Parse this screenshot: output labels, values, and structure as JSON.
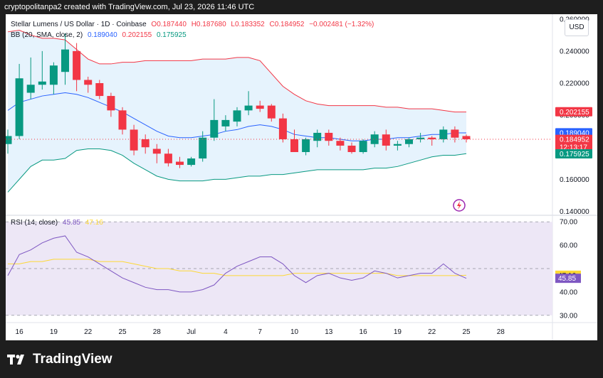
{
  "header": {
    "text": "cryptopolitanpa2 created with TradingView.com, Jul 23, 2026 11:46 UTC"
  },
  "legend": {
    "symbol": "Stellar Lumens / US Dollar · 1D · Coinbase",
    "open": "O0.187440",
    "high": "H0.187680",
    "low": "L0.183352",
    "close": "C0.184952",
    "change": "−0.002481 (−1.32%)",
    "bb_label": "BB (20, SMA, close, 2)",
    "bb_basis": "0.189040",
    "bb_upper": "0.202155",
    "bb_lower": "0.175925",
    "rsi_label": "RSI (14, close)",
    "rsi_value": "45.85",
    "rsi_ma": "47.16"
  },
  "currency": "USD",
  "footer": {
    "brand": "TradingView"
  },
  "colors": {
    "up": "#089981",
    "down": "#f23645",
    "bb_basis": "#2962ff",
    "bb_upper": "#f23645",
    "bb_lower": "#089981",
    "bb_fill": "#e3f2fd",
    "rsi_line": "#7e57c2",
    "rsi_ma": "#fdd835",
    "rsi_band": "#ede7f6"
  },
  "chart_data": {
    "type": "candlestick",
    "price_axis": {
      "ticks": [
        "0.260000",
        "0.240000",
        "0.220000",
        "0.200000",
        "0.180000",
        "0.160000",
        "0.140000"
      ],
      "min": 0.138,
      "max": 0.263
    },
    "x_labels": [
      {
        "i": 1,
        "text": "16"
      },
      {
        "i": 4,
        "text": "19"
      },
      {
        "i": 7,
        "text": "22"
      },
      {
        "i": 10,
        "text": "25"
      },
      {
        "i": 13,
        "text": "28"
      },
      {
        "i": 16,
        "text": "Jul"
      },
      {
        "i": 19,
        "text": "4"
      },
      {
        "i": 22,
        "text": "7"
      },
      {
        "i": 25,
        "text": "10"
      },
      {
        "i": 28,
        "text": "13"
      },
      {
        "i": 31,
        "text": "16"
      },
      {
        "i": 34,
        "text": "19"
      },
      {
        "i": 37,
        "text": "22"
      },
      {
        "i": 40,
        "text": "25"
      },
      {
        "i": 43,
        "text": "28"
      }
    ],
    "candles": [
      [
        0.182,
        0.191,
        0.176,
        0.187
      ],
      [
        0.187,
        0.232,
        0.185,
        0.223
      ],
      [
        0.214,
        0.236,
        0.21,
        0.219
      ],
      [
        0.219,
        0.24,
        0.216,
        0.221
      ],
      [
        0.219,
        0.233,
        0.213,
        0.231
      ],
      [
        0.227,
        0.251,
        0.219,
        0.241
      ],
      [
        0.24,
        0.245,
        0.215,
        0.222
      ],
      [
        0.222,
        0.224,
        0.214,
        0.219
      ],
      [
        0.22,
        0.222,
        0.21,
        0.212
      ],
      [
        0.212,
        0.214,
        0.199,
        0.203
      ],
      [
        0.203,
        0.205,
        0.188,
        0.191
      ],
      [
        0.191,
        0.194,
        0.175,
        0.178
      ],
      [
        0.185,
        0.188,
        0.176,
        0.18
      ],
      [
        0.179,
        0.182,
        0.17,
        0.176
      ],
      [
        0.176,
        0.179,
        0.168,
        0.17
      ],
      [
        0.171,
        0.174,
        0.167,
        0.169
      ],
      [
        0.169,
        0.174,
        0.168,
        0.173
      ],
      [
        0.173,
        0.19,
        0.171,
        0.186
      ],
      [
        0.186,
        0.21,
        0.184,
        0.197
      ],
      [
        0.193,
        0.2,
        0.19,
        0.197
      ],
      [
        0.196,
        0.205,
        0.193,
        0.203
      ],
      [
        0.203,
        0.215,
        0.2,
        0.206
      ],
      [
        0.206,
        0.209,
        0.202,
        0.204
      ],
      [
        0.206,
        0.207,
        0.196,
        0.198
      ],
      [
        0.198,
        0.201,
        0.183,
        0.185
      ],
      [
        0.185,
        0.191,
        0.177,
        0.177
      ],
      [
        0.177,
        0.186,
        0.175,
        0.185
      ],
      [
        0.184,
        0.191,
        0.18,
        0.189
      ],
      [
        0.189,
        0.191,
        0.181,
        0.184
      ],
      [
        0.184,
        0.186,
        0.178,
        0.181
      ],
      [
        0.181,
        0.183,
        0.176,
        0.177
      ],
      [
        0.177,
        0.185,
        0.176,
        0.184
      ],
      [
        0.182,
        0.19,
        0.18,
        0.188
      ],
      [
        0.188,
        0.191,
        0.178,
        0.181
      ],
      [
        0.181,
        0.184,
        0.178,
        0.182
      ],
      [
        0.182,
        0.186,
        0.18,
        0.185
      ],
      [
        0.185,
        0.189,
        0.183,
        0.186
      ],
      [
        0.186,
        0.187,
        0.181,
        0.185
      ],
      [
        0.185,
        0.193,
        0.183,
        0.191
      ],
      [
        0.191,
        0.193,
        0.183,
        0.186
      ],
      [
        0.187,
        0.188,
        0.183,
        0.185
      ]
    ],
    "bb_upper": [
      0.252,
      0.253,
      0.25,
      0.248,
      0.248,
      0.247,
      0.241,
      0.235,
      0.232,
      0.232,
      0.233,
      0.233,
      0.234,
      0.234,
      0.234,
      0.234,
      0.234,
      0.235,
      0.235,
      0.235,
      0.236,
      0.236,
      0.234,
      0.226,
      0.218,
      0.213,
      0.209,
      0.207,
      0.206,
      0.206,
      0.206,
      0.206,
      0.206,
      0.205,
      0.205,
      0.204,
      0.204,
      0.204,
      0.203,
      0.202,
      0.202
    ],
    "bb_basis": [
      0.203,
      0.208,
      0.21,
      0.212,
      0.213,
      0.214,
      0.213,
      0.211,
      0.208,
      0.205,
      0.202,
      0.198,
      0.194,
      0.19,
      0.187,
      0.186,
      0.186,
      0.187,
      0.188,
      0.19,
      0.191,
      0.193,
      0.194,
      0.193,
      0.191,
      0.188,
      0.187,
      0.186,
      0.186,
      0.185,
      0.184,
      0.184,
      0.185,
      0.185,
      0.186,
      0.186,
      0.187,
      0.188,
      0.188,
      0.189,
      0.189
    ],
    "bb_lower": [
      0.152,
      0.16,
      0.168,
      0.172,
      0.172,
      0.173,
      0.178,
      0.179,
      0.179,
      0.178,
      0.175,
      0.17,
      0.166,
      0.162,
      0.16,
      0.159,
      0.159,
      0.159,
      0.16,
      0.16,
      0.161,
      0.162,
      0.162,
      0.163,
      0.163,
      0.164,
      0.165,
      0.166,
      0.166,
      0.166,
      0.166,
      0.166,
      0.167,
      0.167,
      0.168,
      0.17,
      0.172,
      0.174,
      0.175,
      0.175,
      0.176
    ],
    "price_labels": [
      {
        "value": 0.202155,
        "text": "0.202155",
        "color": "#f23645"
      },
      {
        "value": 0.18904,
        "text": "0.189040",
        "color": "#2962ff"
      },
      {
        "value": 0.184952,
        "text": "0.184952",
        "sub": "12:13:17",
        "color": "#f23645"
      },
      {
        "value": 0.175925,
        "text": "0.175925",
        "color": "#089981"
      }
    ],
    "rsi": {
      "ticks": [
        "70.00",
        "60.00",
        "40.00",
        "30.00"
      ],
      "min": 27.5,
      "max": 72.5,
      "upper": 70,
      "lower": 30,
      "mid": 50,
      "values": [
        47,
        56,
        58,
        61,
        63,
        64,
        57,
        55,
        52,
        49,
        46,
        44,
        42,
        41,
        41,
        40,
        40,
        41,
        43,
        48,
        51,
        53,
        55,
        55,
        52,
        47,
        44,
        47,
        48,
        46,
        45,
        46,
        49,
        48,
        46,
        47,
        48,
        48,
        52,
        48,
        45.85
      ],
      "ma": [
        52,
        52,
        53,
        53,
        54,
        54,
        54,
        54,
        53,
        53,
        53,
        52,
        51,
        50,
        50,
        49,
        49,
        48,
        48,
        47,
        47,
        47,
        47,
        47,
        47,
        48,
        48,
        48,
        48,
        48,
        48,
        48,
        48,
        48,
        47,
        47,
        47,
        47,
        47,
        47,
        47.16
      ],
      "labels": [
        {
          "value": 47.16,
          "text": "47.16",
          "color": "#fdd835"
        },
        {
          "value": 45.85,
          "text": "45.85",
          "color": "#7e57c2"
        }
      ]
    }
  }
}
